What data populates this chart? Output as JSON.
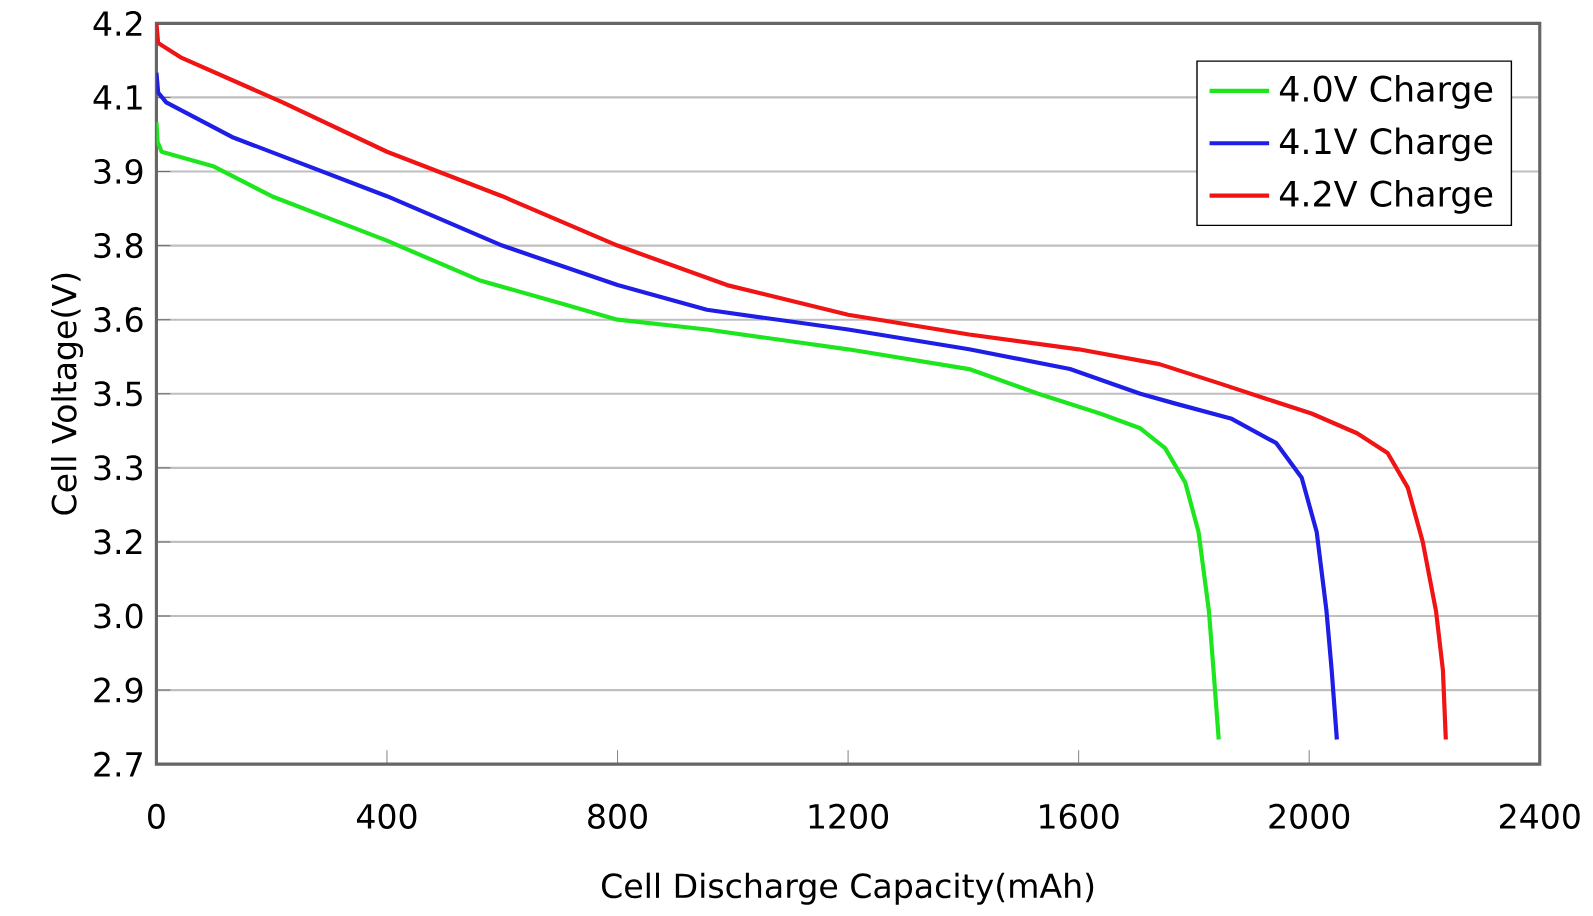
{
  "chart_data": {
    "type": "line",
    "xlabel": "Cell Discharge Capacity(mAh)",
    "ylabel": "Cell Voltage(V)",
    "xlim": [
      0,
      2400
    ],
    "ylim": [
      2.7,
      4.2
    ],
    "xticks": [
      0,
      400,
      800,
      1200,
      1600,
      2000,
      2400
    ],
    "yticks": [
      {
        "value": 2.7,
        "label": "2.7"
      },
      {
        "value": 2.85,
        "label": "2.9"
      },
      {
        "value": 3.0,
        "label": "3.0"
      },
      {
        "value": 3.15,
        "label": "3.2"
      },
      {
        "value": 3.3,
        "label": "3.3"
      },
      {
        "value": 3.45,
        "label": "3.5"
      },
      {
        "value": 3.6,
        "label": "3.6"
      },
      {
        "value": 3.75,
        "label": "3.8"
      },
      {
        "value": 3.9,
        "label": "3.9"
      },
      {
        "value": 4.05,
        "label": "4.1"
      },
      {
        "value": 4.2,
        "label": "4.2"
      }
    ],
    "grid": "y",
    "legend": "top right",
    "marker": "none",
    "line_style": "solid",
    "series": [
      {
        "name": "4.0V Charge",
        "color": "#1ee61e",
        "x": [
          0,
          2,
          9,
          100,
          200,
          400,
          560,
          710,
          800,
          955,
          1200,
          1410,
          1530,
          1637,
          1707,
          1750,
          1785,
          1808,
          1826,
          1834,
          1843
        ],
        "values": [
          4.0,
          3.96,
          3.94,
          3.91,
          3.85,
          3.76,
          3.68,
          3.63,
          3.6,
          3.58,
          3.54,
          3.5,
          3.45,
          3.41,
          3.38,
          3.34,
          3.27,
          3.17,
          3.01,
          2.89,
          2.75
        ]
      },
      {
        "name": "4.1V Charge",
        "color": "#1e1ee6",
        "x": [
          0,
          3,
          17,
          131,
          400,
          600,
          800,
          955,
          1200,
          1410,
          1585,
          1707,
          1768,
          1864,
          1943,
          1987,
          2013,
          2030,
          2039,
          2048
        ],
        "values": [
          4.1,
          4.06,
          4.04,
          3.97,
          3.85,
          3.75,
          3.67,
          3.62,
          3.58,
          3.54,
          3.5,
          3.45,
          3.43,
          3.4,
          3.35,
          3.28,
          3.17,
          3.01,
          2.89,
          2.75
        ]
      },
      {
        "name": "4.2V Charge",
        "color": "#f01414",
        "x": [
          0,
          3,
          44,
          219,
          400,
          600,
          800,
          990,
          1200,
          1410,
          1600,
          1740,
          1847,
          1925,
          2004,
          2083,
          2136,
          2171,
          2197,
          2220,
          2232,
          2237
        ],
        "values": [
          4.2,
          4.16,
          4.13,
          4.04,
          3.94,
          3.85,
          3.75,
          3.67,
          3.61,
          3.57,
          3.54,
          3.51,
          3.47,
          3.44,
          3.41,
          3.37,
          3.33,
          3.26,
          3.15,
          3.01,
          2.89,
          2.75
        ]
      }
    ]
  }
}
